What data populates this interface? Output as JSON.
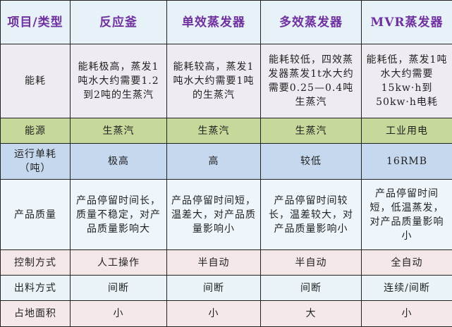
{
  "header": [
    "项目/类型",
    "反应釜",
    "单效蒸发器",
    "多效蒸发器",
    "MVR蒸发器"
  ],
  "rows": [
    {
      "key": "energy",
      "cells": [
        "能耗",
        "能耗极高，蒸发1吨水大约需要1.2到2吨的生蒸汽",
        "能耗较高，蒸发1吨水大约需要1吨的生蒸汽",
        "能耗较低，四效蒸发器蒸发1t水大约需要0.25—0.4吨生蒸汽",
        "能耗低，蒸发1吨水大约需要15kw·h到50kw·h电耗"
      ]
    },
    {
      "key": "source",
      "cells": [
        "能源",
        "生蒸汽",
        "生蒸汽",
        "生蒸汽",
        "工业用电"
      ]
    },
    {
      "key": "cost",
      "cells": [
        "运行单耗（吨）",
        "极高",
        "高",
        "较低",
        "16RMB"
      ]
    },
    {
      "key": "quality",
      "cells": [
        "产品质量",
        "产品停留时间长，质量不稳定，对产品质量影响大",
        "产品停留时间短，温差大，对产品质量影响小",
        "产品停留时间较长，温差较大，对产品质量影响小",
        "产品停留时间短，低温蒸发，对产品质量影响小"
      ]
    },
    {
      "key": "control",
      "cells": [
        "控制方式",
        "人工操作",
        "半自动",
        "半自动",
        "全自动"
      ]
    },
    {
      "key": "output",
      "cells": [
        "出料方式",
        "间断",
        "间断",
        "间断",
        "连续/间断"
      ]
    },
    {
      "key": "area",
      "cells": [
        "占地面积",
        "小",
        "小",
        "大",
        "小"
      ]
    }
  ],
  "colors": {
    "header_text": "#7030a0",
    "source_row": "#c6d89a",
    "cost_row": "#c6d8ee"
  }
}
